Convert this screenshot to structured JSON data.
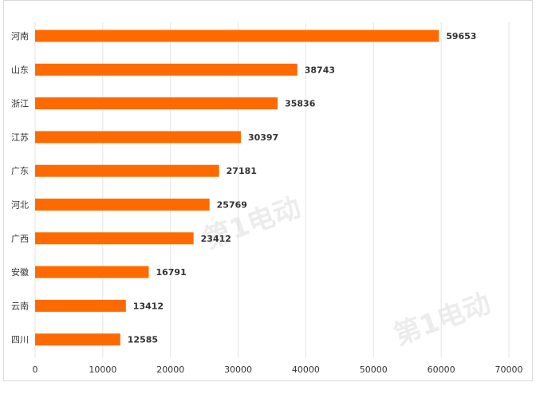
{
  "chart_data": {
    "type": "bar",
    "orientation": "horizontal",
    "categories": [
      "河南",
      "山东",
      "浙江",
      "江苏",
      "广东",
      "河北",
      "广西",
      "安徽",
      "云南",
      "四川"
    ],
    "values": [
      59653,
      38743,
      35836,
      30397,
      27181,
      25769,
      23412,
      16791,
      13412,
      12585
    ],
    "xlim": [
      0,
      70000
    ],
    "xticks": [
      "0",
      "10000",
      "20000",
      "30000",
      "40000",
      "50000",
      "60000",
      "70000"
    ],
    "grid": true,
    "legend": "none",
    "bar_color": "#ff6a00"
  },
  "watermark": {
    "brand_text": "第1电动"
  }
}
